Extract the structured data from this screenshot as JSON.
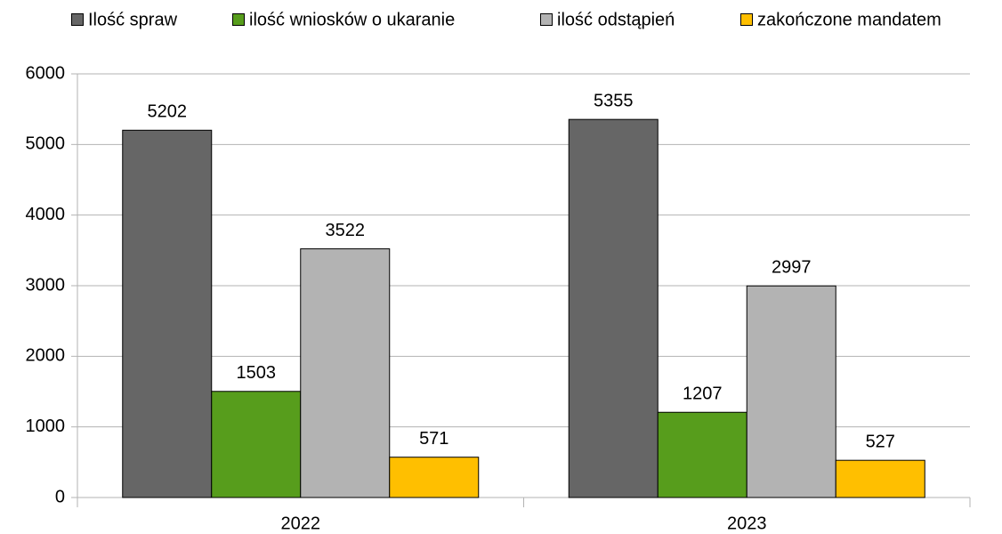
{
  "chart_data": {
    "type": "bar",
    "categories": [
      "2022",
      "2023"
    ],
    "series": [
      {
        "name": "Ilość spraw",
        "color": "#666666",
        "values": [
          5202,
          5355
        ]
      },
      {
        "name": "ilość wniosków o ukaranie",
        "color": "#579d1c",
        "values": [
          1503,
          1207
        ]
      },
      {
        "name": "ilość odstąpień",
        "color": "#b3b3b3",
        "values": [
          3522,
          2997
        ]
      },
      {
        "name": "zakończone mandatem",
        "color": "#ffbf00",
        "values": [
          571,
          527
        ]
      }
    ],
    "ylim": [
      0,
      6000
    ],
    "yticks": [
      0,
      1000,
      2000,
      3000,
      4000,
      5000,
      6000
    ],
    "grid": true,
    "legend": "top"
  }
}
